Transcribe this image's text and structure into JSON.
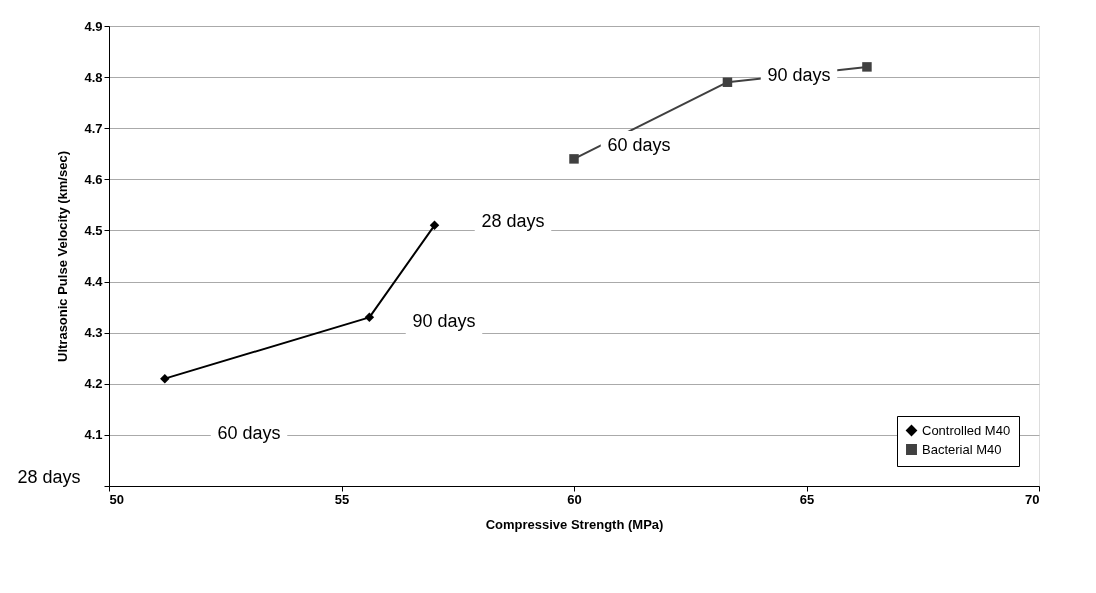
{
  "chart_data": {
    "type": "line",
    "xlabel": "Compressive Strength (MPa)",
    "ylabel": "Ultrasonic Pulse Velocity (km/sec)",
    "series": [
      {
        "name": "Controlled M40",
        "color": "#000000",
        "marker": "diamond",
        "x": [
          51.2,
          55.6,
          57.0
        ],
        "values": [
          4.21,
          4.33,
          4.51
        ]
      },
      {
        "name": "Bacterial M40",
        "color": "#404040",
        "marker": "square",
        "x": [
          60.0,
          63.3,
          66.3
        ],
        "values": [
          4.64,
          4.79,
          4.82
        ]
      }
    ],
    "xlim": [
      50,
      70
    ],
    "xticks": [
      50,
      55,
      60,
      65,
      70
    ],
    "ylim": [
      4.0,
      4.9
    ],
    "yticks": [
      {
        "value": 4.0,
        "label": null
      },
      4.1,
      4.2,
      4.3,
      4.4,
      4.5,
      4.6,
      4.7,
      4.8,
      4.9
    ],
    "grid": "y",
    "legend": "bottom right",
    "line_style": "solid",
    "annotations": [
      "28 days",
      "60 days",
      "90 days",
      "28 days",
      "60 days",
      "90 days"
    ]
  }
}
